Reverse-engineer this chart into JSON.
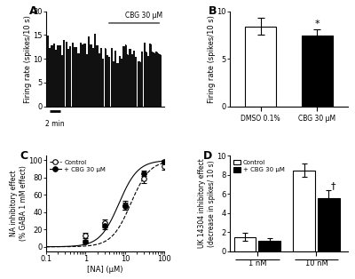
{
  "panel_A": {
    "label": "A",
    "ylabel": "Firing rate (spikes/10 s)",
    "ylim": [
      0,
      20
    ],
    "yticks": [
      0,
      5,
      10,
      15,
      20
    ],
    "cbg_label": "CBG 30 μM",
    "scale_bar_label": "2 min",
    "bar_color": "#111111",
    "baseline_mean": 12.8,
    "cbg_mean": 11.2,
    "n_baseline": 28,
    "n_cbg": 28
  },
  "panel_B": {
    "label": "B",
    "ylabel": "Firing rate (spikes/10 s)",
    "ylim": [
      0,
      10
    ],
    "yticks": [
      0,
      5,
      10
    ],
    "categories": [
      "DMSO 0.1%",
      "CBG 30 μM"
    ],
    "values": [
      8.4,
      7.4
    ],
    "errors": [
      0.9,
      0.7
    ],
    "bar_colors": [
      "white",
      "black"
    ],
    "significance": "*"
  },
  "panel_C": {
    "label": "C",
    "xlabel": "[NA] (μM)",
    "ylabel": "NA inhibitory effect\n(% GABA 1 mM effect)",
    "ylim": [
      -5,
      105
    ],
    "yticks": [
      0,
      20,
      40,
      60,
      80,
      100
    ],
    "xmin": 0.1,
    "xmax": 100,
    "control_x": [
      1,
      3,
      10,
      30,
      100
    ],
    "control_y": [
      13,
      27,
      48,
      79,
      93
    ],
    "control_err": [
      3,
      5,
      5,
      5,
      4
    ],
    "cbg_x": [
      1,
      3,
      10,
      30,
      100
    ],
    "cbg_y": [
      6,
      24,
      47,
      85,
      98
    ],
    "cbg_err": [
      2,
      4,
      4,
      3,
      2
    ],
    "legend_control": "Control",
    "legend_cbg": "+ CBG 30 μM",
    "control_ec50": 14,
    "cbg_ec50": 7,
    "hill_n": 1.8
  },
  "panel_D": {
    "label": "D",
    "ylabel": "UK 14304 inhibitory effect\n(decrease in spikes/ 10 s)",
    "ylim": [
      0,
      10
    ],
    "yticks": [
      0,
      2,
      4,
      6,
      8,
      10
    ],
    "groups": [
      "1 nM",
      "10 nM"
    ],
    "control_values": [
      1.5,
      8.5
    ],
    "control_errors": [
      0.4,
      0.7
    ],
    "cbg_values": [
      1.1,
      5.6
    ],
    "cbg_errors": [
      0.3,
      0.8
    ],
    "significance_10nM": "†",
    "legend_control": "Control",
    "legend_cbg": "+ CBG 30 μM"
  },
  "background_color": "white",
  "text_color": "black",
  "font_size": 7
}
